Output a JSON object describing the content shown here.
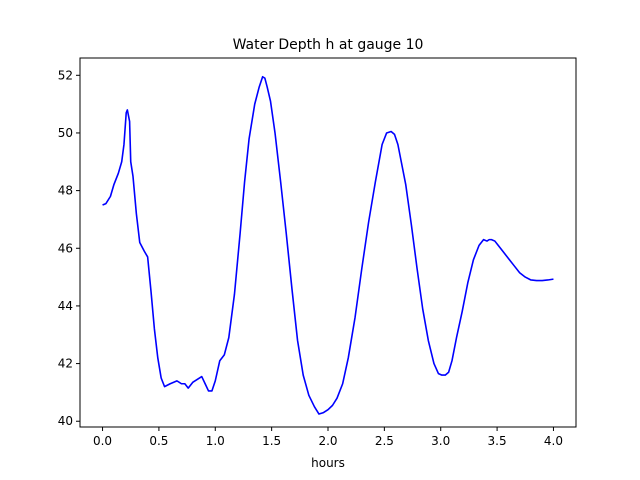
{
  "chart_data": {
    "type": "line",
    "title": "Water Depth h at gauge 10",
    "xlabel": "hours",
    "ylabel": "",
    "xlim": [
      -0.2,
      4.2
    ],
    "ylim": [
      39.8,
      52.6
    ],
    "xticks": [
      0.0,
      0.5,
      1.0,
      1.5,
      2.0,
      2.5,
      3.0,
      3.5,
      4.0
    ],
    "xtick_labels": [
      "0.0",
      "0.5",
      "1.0",
      "1.5",
      "2.0",
      "2.5",
      "3.0",
      "3.5",
      "4.0"
    ],
    "yticks": [
      40,
      42,
      44,
      46,
      48,
      50,
      52
    ],
    "ytick_labels": [
      "40",
      "42",
      "44",
      "46",
      "48",
      "50",
      "52"
    ],
    "grid": false,
    "series": [
      {
        "color": "#0000ff",
        "x": [
          0.0,
          0.03,
          0.07,
          0.1,
          0.14,
          0.17,
          0.19,
          0.21,
          0.22,
          0.24,
          0.25,
          0.27,
          0.3,
          0.33,
          0.37,
          0.4,
          0.43,
          0.46,
          0.49,
          0.52,
          0.55,
          0.6,
          0.66,
          0.7,
          0.73,
          0.76,
          0.8,
          0.84,
          0.88,
          0.91,
          0.94,
          0.97,
          1.0,
          1.04,
          1.08,
          1.12,
          1.17,
          1.22,
          1.26,
          1.3,
          1.35,
          1.39,
          1.42,
          1.44,
          1.46,
          1.49,
          1.53,
          1.58,
          1.63,
          1.68,
          1.73,
          1.78,
          1.83,
          1.88,
          1.92,
          1.96,
          2.0,
          2.04,
          2.08,
          2.13,
          2.18,
          2.24,
          2.3,
          2.36,
          2.42,
          2.48,
          2.52,
          2.56,
          2.59,
          2.62,
          2.65,
          2.69,
          2.74,
          2.79,
          2.84,
          2.89,
          2.94,
          2.98,
          3.01,
          3.04,
          3.07,
          3.1,
          3.14,
          3.19,
          3.24,
          3.29,
          3.34,
          3.38,
          3.41,
          3.43,
          3.45,
          3.48,
          3.51,
          3.55,
          3.6,
          3.65,
          3.7,
          3.75,
          3.8,
          3.85,
          3.9,
          3.95,
          4.0
        ],
        "values": [
          47.5,
          47.55,
          47.8,
          48.2,
          48.6,
          49.0,
          49.6,
          50.7,
          50.8,
          50.4,
          49.0,
          48.5,
          47.2,
          46.2,
          45.9,
          45.7,
          44.5,
          43.2,
          42.2,
          41.5,
          41.2,
          41.3,
          41.4,
          41.3,
          41.3,
          41.15,
          41.35,
          41.45,
          41.55,
          41.3,
          41.05,
          41.05,
          41.4,
          42.1,
          42.3,
          42.9,
          44.4,
          46.5,
          48.3,
          49.8,
          51.0,
          51.6,
          51.95,
          51.9,
          51.6,
          51.1,
          50.0,
          48.3,
          46.5,
          44.6,
          42.8,
          41.6,
          40.9,
          40.5,
          40.25,
          40.3,
          40.4,
          40.55,
          40.8,
          41.3,
          42.2,
          43.6,
          45.3,
          46.9,
          48.3,
          49.6,
          50.0,
          50.05,
          49.95,
          49.6,
          49.0,
          48.2,
          46.8,
          45.3,
          43.9,
          42.8,
          42.0,
          41.65,
          41.6,
          41.6,
          41.7,
          42.1,
          42.9,
          43.8,
          44.8,
          45.6,
          46.1,
          46.3,
          46.25,
          46.3,
          46.3,
          46.25,
          46.1,
          45.9,
          45.65,
          45.4,
          45.15,
          45.0,
          44.9,
          44.88,
          44.88,
          44.9,
          44.93
        ]
      }
    ]
  }
}
